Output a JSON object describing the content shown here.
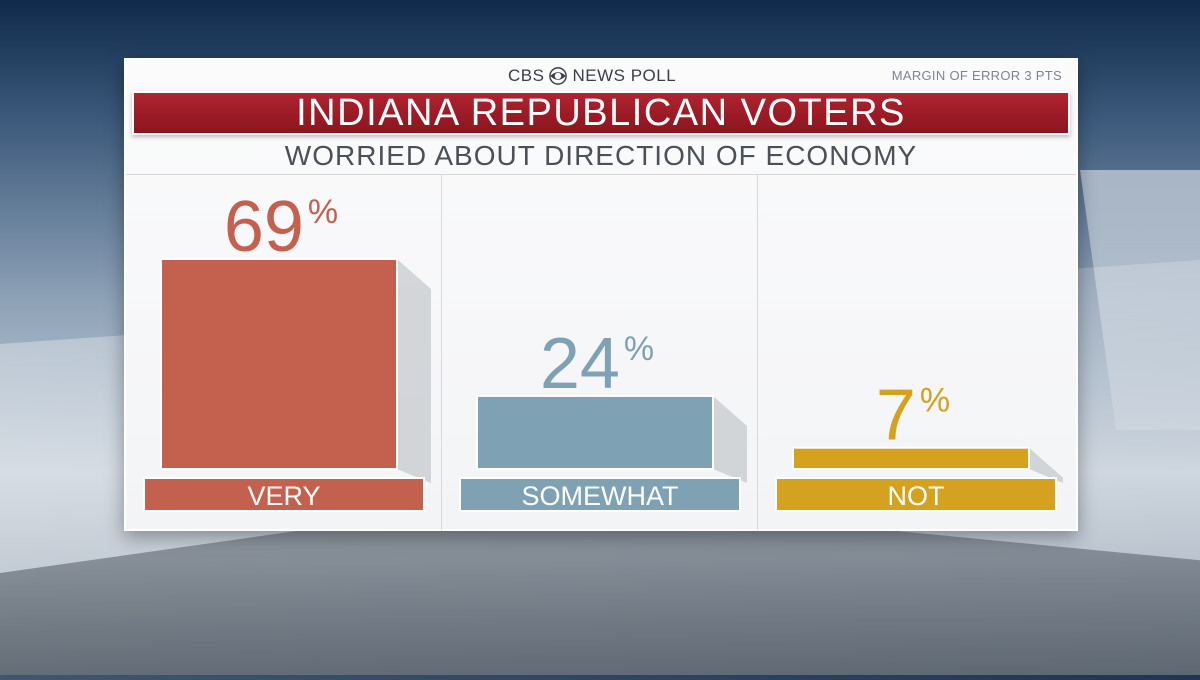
{
  "brand": {
    "left": "CBS",
    "right": "NEWS POLL"
  },
  "margin_of_error": "MARGIN OF ERROR 3 PTS",
  "colors": {
    "title_bar": "#9e1c27",
    "very": "#c4604e",
    "somewhat": "#7ea2b3",
    "not": "#d4a21e"
  },
  "chart_data": {
    "type": "bar",
    "title": "INDIANA REPUBLICAN VOTERS",
    "subtitle": "WORRIED ABOUT DIRECTION OF ECONOMY",
    "categories": [
      "VERY",
      "SOMEWHAT",
      "NOT"
    ],
    "values": [
      69,
      24,
      7
    ],
    "unit": "%",
    "colors": [
      "#c4604e",
      "#7ea2b3",
      "#d4a21e"
    ],
    "ylim": [
      0,
      100
    ],
    "grid": false,
    "legend": "none"
  }
}
